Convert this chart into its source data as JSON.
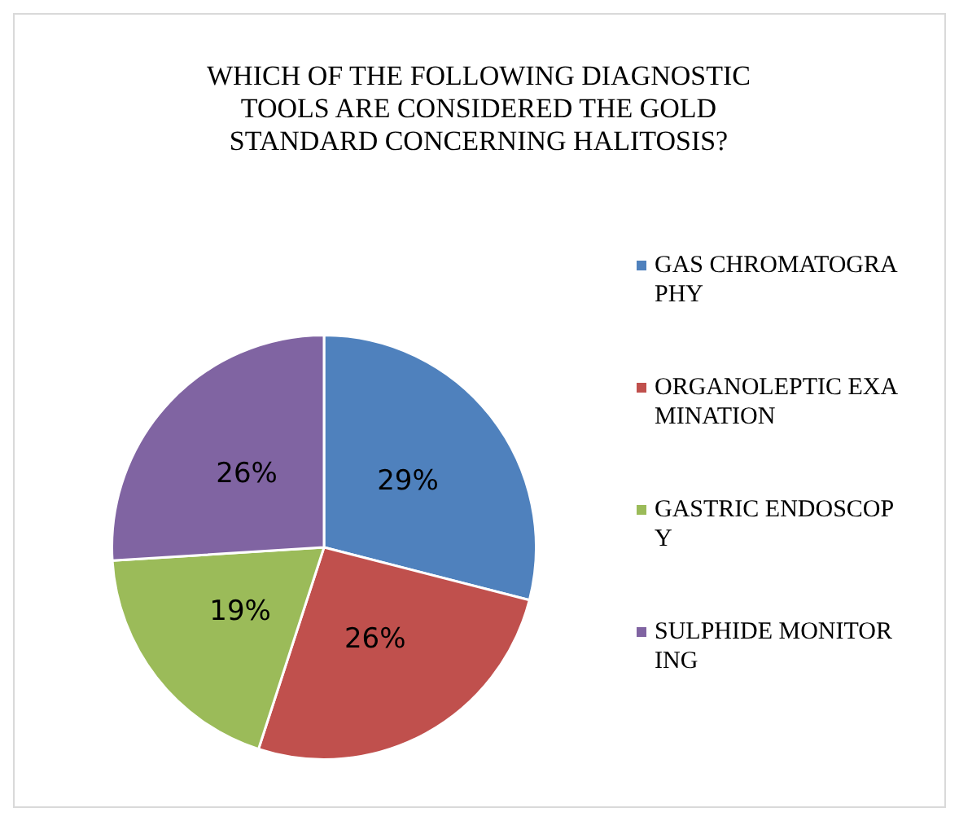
{
  "chart_data": {
    "type": "pie",
    "title": "WHICH OF THE FOLLOWING DIAGNOSTIC TOOLS ARE CONSIDERED THE GOLD STANDARD CONCERNING HALITOSIS?",
    "categories": [
      "GAS CHROMATOGRAPHY",
      "ORGANOLEPTIC EXAMINATION",
      "GASTRIC ENDOSCOPY",
      "SULPHIDE MONITORING"
    ],
    "values": [
      29,
      26,
      19,
      26
    ],
    "value_labels": [
      "29%",
      "26%",
      "19%",
      "26%"
    ],
    "colors": [
      "#4f81bd",
      "#c0504d",
      "#9bbb59",
      "#8064a2"
    ],
    "legend": "right"
  }
}
